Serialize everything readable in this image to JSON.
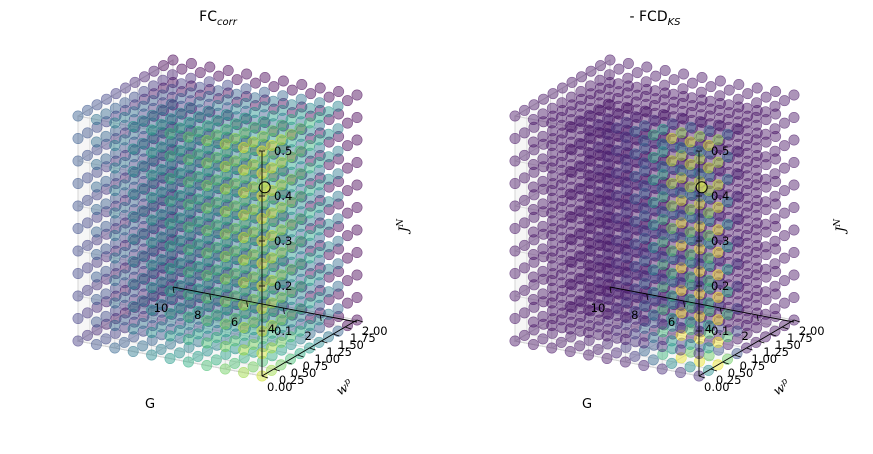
{
  "chart_data": [
    {
      "type": "scatter",
      "projection": "3d",
      "title": "FC",
      "title_sub": "corr",
      "xlabel": "G",
      "ylabel": "w",
      "ylabel_sup": "p",
      "zlabel": "J",
      "zlabel_sup": "N",
      "x_ticks": [
        "10",
        "8",
        "6",
        "4",
        "2"
      ],
      "y_ticks": [
        "0.00",
        "0.25",
        "0.50",
        "0.75",
        "1.00",
        "1.25",
        "1.50",
        "1.75",
        "2.00"
      ],
      "z_ticks": [
        "0.0",
        "0.1",
        "0.2",
        "0.3",
        "0.4",
        "0.5"
      ],
      "xlim": [
        0,
        10
      ],
      "ylim": [
        0,
        2
      ],
      "zlim": [
        0,
        0.5
      ],
      "grid_points": {
        "G": 11,
        "wp": 11,
        "JN": 11
      },
      "colormap": "viridis",
      "highlight": {
        "G": 0.5,
        "wp": 0.25,
        "JN": 0.4
      },
      "value_model": "high at low G and low wp (yellow), low at high wp (purple)"
    },
    {
      "type": "scatter",
      "projection": "3d",
      "title": "- FCD",
      "title_sub": "KS",
      "xlabel": "G",
      "ylabel": "w",
      "ylabel_sup": "p",
      "zlabel": "J",
      "zlabel_sup": "N",
      "x_ticks": [
        "10",
        "8",
        "6",
        "4",
        "2"
      ],
      "y_ticks": [
        "0.00",
        "0.25",
        "0.50",
        "0.75",
        "1.00",
        "1.25",
        "1.50",
        "1.75",
        "2.00"
      ],
      "z_ticks": [
        "0.0",
        "0.1",
        "0.2",
        "0.3",
        "0.4",
        "0.5"
      ],
      "xlim": [
        0,
        10
      ],
      "ylim": [
        0,
        2
      ],
      "zlim": [
        0,
        0.5
      ],
      "grid_points": {
        "G": 11,
        "wp": 11,
        "JN": 11
      },
      "colormap": "viridis",
      "highlight": {
        "G": 0.5,
        "wp": 0.25,
        "JN": 0.4
      },
      "value_model": "mostly purple; yellow ridge near low G and low wp"
    }
  ]
}
